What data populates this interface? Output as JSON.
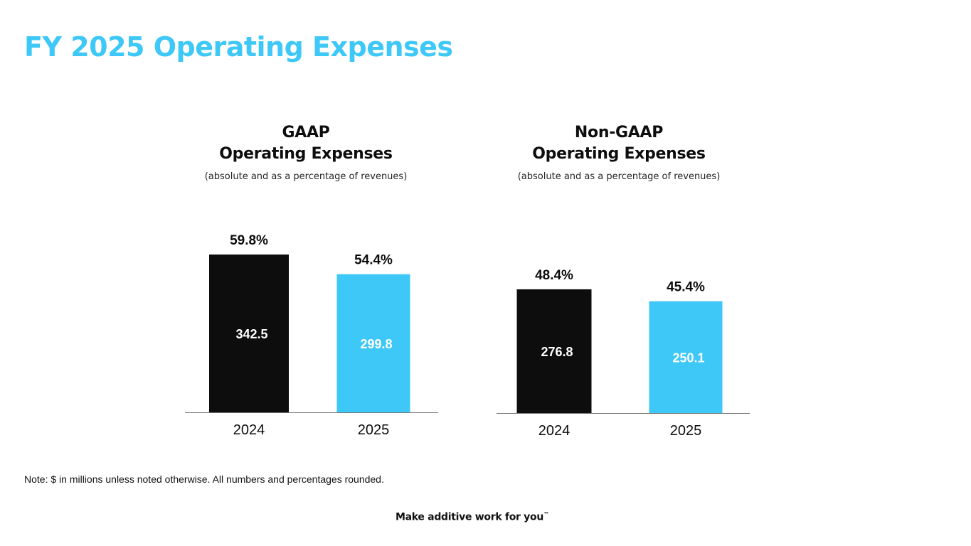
{
  "page": {
    "title": "FY 2025 Operating Expenses",
    "note": "Note: $ in millions unless noted otherwise. All numbers and percentages rounded.",
    "tagline": "Make additive work for you",
    "tagline_mark": "™"
  },
  "colors": {
    "accent": "#3ec8f8",
    "bar_2024": "#0d0d0d",
    "bar_2025": "#3ec8f8",
    "axis": "#777777"
  },
  "chart_data": [
    {
      "type": "bar",
      "title_line1": "GAAP",
      "title_line2": "Operating Expenses",
      "subtitle": "(absolute and as a percentage of revenues)",
      "categories": [
        "2024",
        "2025"
      ],
      "values": [
        342.5,
        299.8
      ],
      "value_labels": [
        "342.5",
        "299.8"
      ],
      "percent_labels": [
        "59.8%",
        "54.4%"
      ],
      "unit": "$ in millions",
      "ylim": [
        0,
        342.5
      ],
      "grid": false,
      "legend": "none"
    },
    {
      "type": "bar",
      "title_line1": "Non-GAAP",
      "title_line2": "Operating Expenses",
      "subtitle": "(absolute and as a percentage of revenues)",
      "categories": [
        "2024",
        "2025"
      ],
      "values": [
        276.8,
        250.1
      ],
      "value_labels": [
        "276.8",
        "250.1"
      ],
      "percent_labels": [
        "48.4%",
        "45.4%"
      ],
      "unit": "$ in millions",
      "ylim": [
        0,
        276.8
      ],
      "grid": false,
      "legend": "none"
    }
  ]
}
